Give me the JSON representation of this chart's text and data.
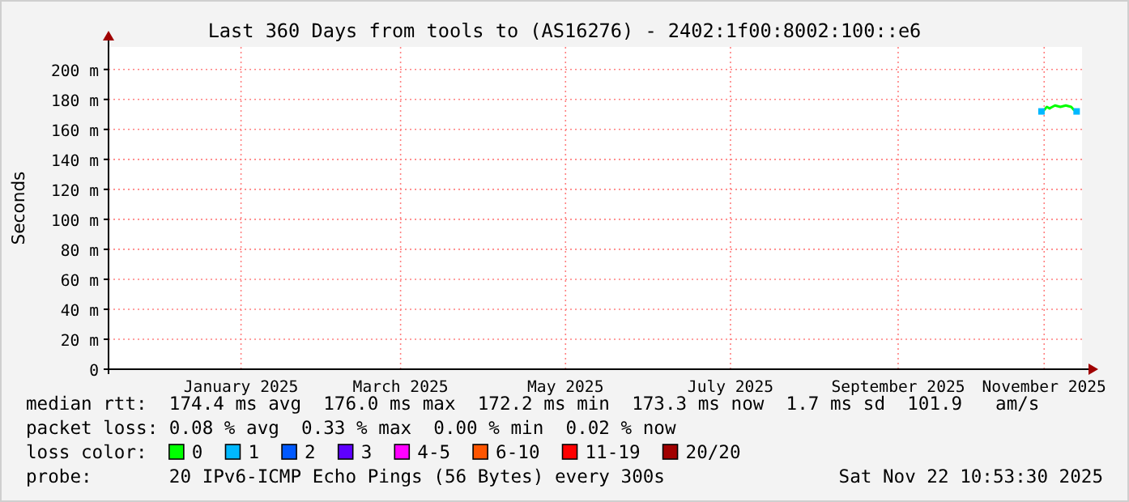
{
  "chart_data": {
    "type": "line",
    "title": "Last 360 Days from tools to (AS16276) - 2402:1f00:8002:100::e6",
    "ylabel": "Seconds",
    "xlim": [
      "2024-11-27",
      "2025-11-22"
    ],
    "xticks": [
      {
        "value": "2025-01-15",
        "label": "January 2025"
      },
      {
        "value": "2025-03-15",
        "label": "March 2025"
      },
      {
        "value": "2025-05-15",
        "label": "May 2025"
      },
      {
        "value": "2025-07-15",
        "label": "July 2025"
      },
      {
        "value": "2025-09-15",
        "label": "September 2025"
      },
      {
        "value": "2025-11-08",
        "label": "November 2025"
      }
    ],
    "ylim": [
      0,
      215
    ],
    "yticks": [
      {
        "value": 0,
        "label": "0"
      },
      {
        "value": 20,
        "label": "20 m"
      },
      {
        "value": 40,
        "label": "40 m"
      },
      {
        "value": 60,
        "label": "60 m"
      },
      {
        "value": 80,
        "label": "80 m"
      },
      {
        "value": 100,
        "label": "100 m"
      },
      {
        "value": 120,
        "label": "120 m"
      },
      {
        "value": 140,
        "label": "140 m"
      },
      {
        "value": 160,
        "label": "160 m"
      },
      {
        "value": 180,
        "label": "180 m"
      },
      {
        "value": 200,
        "label": "200 m"
      }
    ],
    "grid": true,
    "legend": "bottom",
    "legend_title": "loss color:",
    "x": [
      "2025-11-07",
      "2025-11-08",
      "2025-11-09",
      "2025-11-10",
      "2025-11-11",
      "2025-11-12",
      "2025-11-14",
      "2025-11-16",
      "2025-11-18",
      "2025-11-19",
      "2025-11-20"
    ],
    "series": [
      {
        "name": "0",
        "color": "#00ff00",
        "values": [
          172,
          173,
          175,
          174,
          175,
          176,
          175,
          176,
          175,
          173,
          172
        ]
      },
      {
        "name": "1",
        "type": "scatter",
        "marker": "square",
        "color": "#00b8ff",
        "values": [
          172,
          null,
          null,
          null,
          null,
          null,
          null,
          null,
          null,
          null,
          172
        ]
      },
      {
        "name": "2",
        "color": "#0059ff",
        "values": [
          null,
          null,
          null,
          null,
          null,
          null,
          null,
          null,
          null,
          null,
          null
        ]
      },
      {
        "name": "3",
        "color": "#5e00ff",
        "values": [
          null,
          null,
          null,
          null,
          null,
          null,
          null,
          null,
          null,
          null,
          null
        ]
      },
      {
        "name": "4-5",
        "color": "#ff00ff",
        "values": [
          null,
          null,
          null,
          null,
          null,
          null,
          null,
          null,
          null,
          null,
          null
        ]
      },
      {
        "name": "6-10",
        "color": "#ff5500",
        "values": [
          null,
          null,
          null,
          null,
          null,
          null,
          null,
          null,
          null,
          null,
          null
        ]
      },
      {
        "name": "11-19",
        "color": "#ff0000",
        "values": [
          null,
          null,
          null,
          null,
          null,
          null,
          null,
          null,
          null,
          null,
          null
        ]
      },
      {
        "name": "20/20",
        "color": "#a10000",
        "values": [
          null,
          null,
          null,
          null,
          null,
          null,
          null,
          null,
          null,
          null,
          null
        ]
      }
    ],
    "annotations": [
      "median rtt:  174.4 ms avg  176.0 ms max  172.2 ms min  173.3 ms now  1.7 ms sd  101.9   am/s",
      "packet loss: 0.08 % avg  0.33 % max  0.00 % min  0.02 % now",
      "probe:       20 IPv6-ICMP Echo Pings (56 Bytes) every 300s",
      "Sat Nov 22 10:53:30 2025"
    ]
  }
}
